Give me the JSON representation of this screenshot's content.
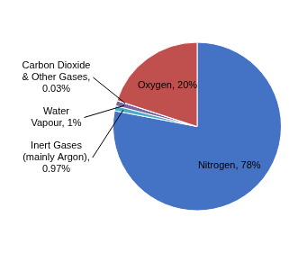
{
  "chart_data": {
    "type": "pie",
    "values": [
      78,
      0.97,
      1,
      0.03,
      20
    ],
    "colors": [
      "#4472C4",
      "#4BACC6",
      "#8064A2",
      "#F2F2F2",
      "#C0504D"
    ],
    "data_labels": true,
    "value_labels": [
      "Nitrogen, 78%",
      "Inert Gases\n(mainly Argon),\n0.97%",
      "Water\nVapour, 1%",
      "Carbon Dioxide\n& Other Gases,\n0.03%",
      "Oxygen, 20%"
    ]
  }
}
